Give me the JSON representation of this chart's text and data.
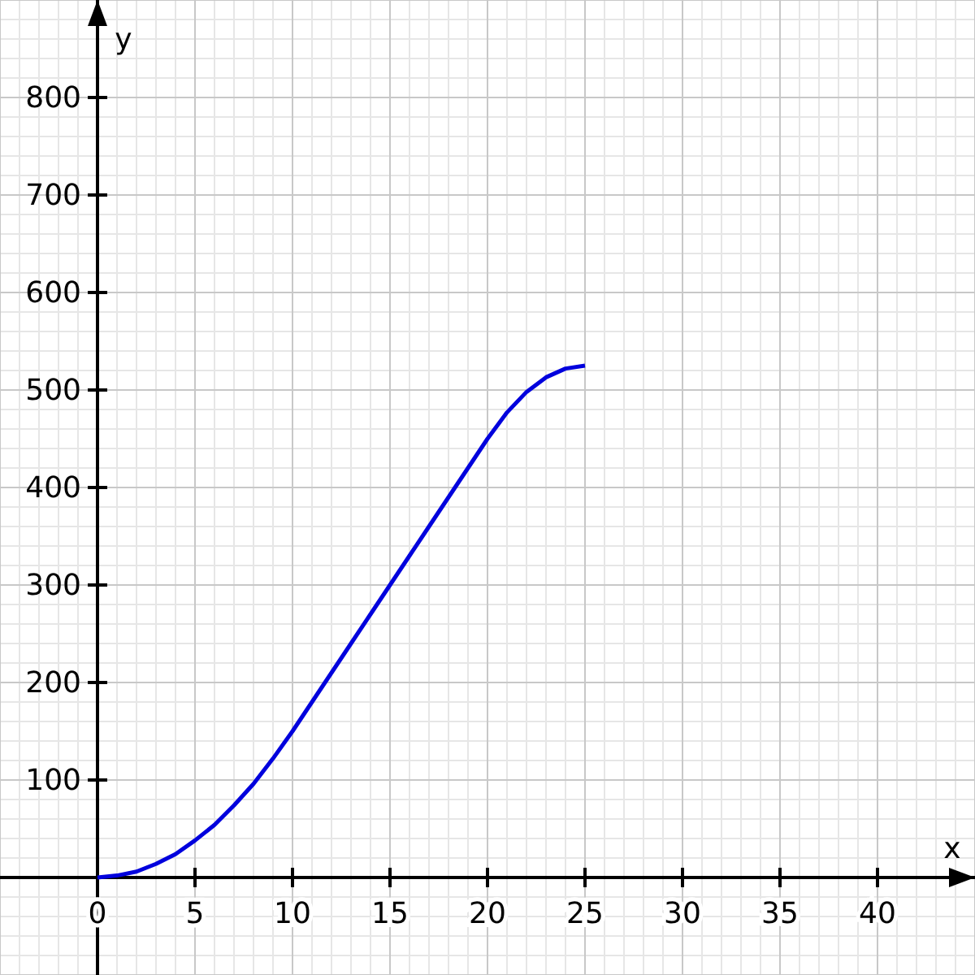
{
  "chart_data": {
    "type": "line",
    "xlabel": "x",
    "ylabel": "y",
    "x": [
      0,
      1,
      2,
      3,
      4,
      5,
      6,
      7,
      8,
      9,
      10,
      11,
      12,
      13,
      14,
      15,
      16,
      17,
      18,
      19,
      20,
      21,
      22,
      23,
      24,
      25
    ],
    "series": [
      {
        "color": "#0000dd",
        "values": [
          0,
          2,
          6,
          14,
          24,
          38,
          54,
          74,
          96,
          122,
          150,
          180,
          210,
          240,
          270,
          300,
          330,
          360,
          390,
          420,
          450,
          477,
          498,
          513,
          522,
          525
        ]
      }
    ],
    "xlim": [
      -5,
      45
    ],
    "ylim": [
      -100,
      900
    ],
    "xticks": [
      0,
      5,
      10,
      15,
      20,
      25,
      30,
      35,
      40
    ],
    "yticks": [
      100,
      200,
      300,
      400,
      500,
      600,
      700,
      800
    ],
    "grid": true,
    "marker": "none",
    "line_style": "solid"
  }
}
